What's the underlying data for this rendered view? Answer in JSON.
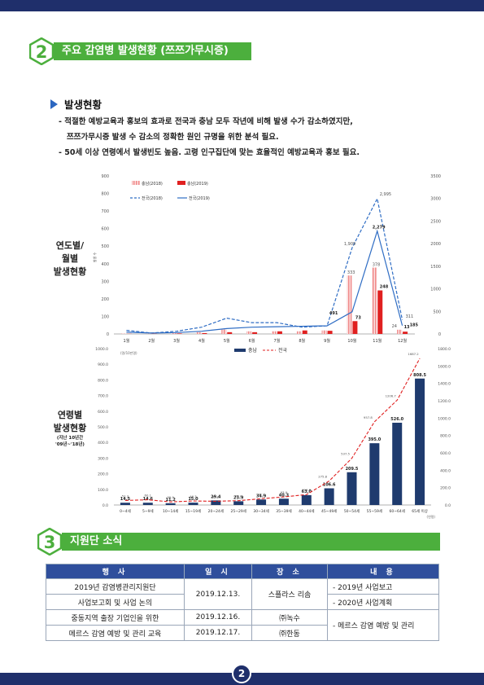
{
  "page_number": "2",
  "section2": {
    "number": "2",
    "title": "주요 감염병 발생현황 (쯔쯔가무시증)"
  },
  "subheading": "발생현황",
  "bullets": [
    "- 적절한 예방교육과 홍보의 효과로 전국과 충남 모두 작년에 비해 발생 수가 감소하였지만,",
    "쯔쯔가무시증 발생 수 감소의 정확한 원인 규명을 위한 분석 필요.",
    "- 50세 이상 연령에서 발생빈도 높음. 고령 인구집단에 맞는 효율적인 예방교육과 홍보 필요."
  ],
  "chart1_label": [
    "연도별/",
    "월별",
    "발생현황"
  ],
  "chart2_label": [
    "연령별",
    "발생현황"
  ],
  "chart2_sublabel": [
    "(지난 10년간",
    "'09년~'18년)"
  ],
  "colors": {
    "navy": "#1f2f6b",
    "green": "#4caf3d",
    "red": "#e02020",
    "pink": "#f4a9a9",
    "blue": "#2b66c0",
    "dash": "#2f6dc4"
  },
  "chart_data": [
    {
      "type": "bar",
      "title": "",
      "categories": [
        "1월",
        "2월",
        "3월",
        "4월",
        "5월",
        "6월",
        "7월",
        "8월",
        "9월",
        "10월",
        "11월",
        "12월"
      ],
      "left_axis_ticks": [
        "0",
        "100",
        "200",
        "300",
        "400",
        "500",
        "600",
        "700",
        "800",
        "900"
      ],
      "right_axis_ticks": [
        "0",
        "500",
        "1000",
        "1500",
        "2000",
        "2500",
        "3000",
        "3500"
      ],
      "ylim_left": [
        0,
        900
      ],
      "ylim_right": [
        0,
        3500
      ],
      "axis_unit": "발생 수",
      "series": [
        {
          "name": "충남(2018)",
          "kind": "bar",
          "axis": "left",
          "values": [
            2,
            1,
            5,
            10,
            25,
            15,
            15,
            15,
            20,
            333,
            378,
            24
          ]
        },
        {
          "name": "충남(2019)",
          "kind": "bar",
          "axis": "left",
          "values": [
            1,
            1,
            3,
            5,
            10,
            10,
            15,
            20,
            18,
            73,
            248,
            13
          ]
        },
        {
          "name": "전국(2018)",
          "kind": "line-dashed",
          "axis": "right",
          "values": [
            80,
            20,
            60,
            150,
            350,
            250,
            250,
            150,
            180,
            1909,
            2995,
            311
          ]
        },
        {
          "name": "전국(2019)",
          "kind": "line",
          "axis": "right",
          "values": [
            40,
            20,
            30,
            60,
            120,
            150,
            160,
            170,
            180,
            491,
            2279,
            185
          ]
        }
      ],
      "value_labels": [
        "1,909",
        "2,995",
        "333",
        "378",
        "2,279",
        "491",
        "73",
        "248",
        "311",
        "24",
        "13",
        "185"
      ]
    },
    {
      "type": "bar",
      "title": "",
      "categories": [
        "0~4세",
        "5~9세",
        "10~14세",
        "15~19세",
        "20~24세",
        "25~29세",
        "30~34세",
        "35~39세",
        "40~44세",
        "45~49세",
        "50~54세",
        "55~59세",
        "60~64세",
        "65세 이상"
      ],
      "left_axis_ticks": [
        "0.0",
        "100.0",
        "200.0",
        "300.0",
        "400.0",
        "500.0",
        "600.0",
        "700.0",
        "800.0",
        "900.0",
        "1000.0"
      ],
      "right_axis_ticks": [
        "0.0",
        "200.0",
        "400.0",
        "600.0",
        "800.0",
        "1000.0",
        "1200.0",
        "1400.0",
        "1600.0",
        "1800.0"
      ],
      "ylim_left": [
        0,
        1000
      ],
      "ylim_right": [
        0,
        1800
      ],
      "unit_note": "(명/10만명)",
      "unit_bottom": "(연령)",
      "series": [
        {
          "name": "충남",
          "kind": "bar",
          "axis": "left",
          "values": [
            14.5,
            14.6,
            11.2,
            15.0,
            29.4,
            23.9,
            34.9,
            40.3,
            63.0,
            106.6,
            209.5,
            395.0,
            526.0,
            808.5
          ]
        },
        {
          "name": "전국",
          "kind": "line-dashed",
          "axis": "right",
          "values": [
            52.3,
            60.1,
            35.9,
            46.3,
            42.8,
            50.0,
            72.2,
            93.0,
            119.8,
            275.8,
            537.5,
            957.8,
            1206.7,
            1687.2
          ]
        }
      ],
      "bar_labels": [
        "14.5",
        "14.6",
        "11.2",
        "15.0",
        "29.4",
        "23.9",
        "34.9",
        "40.3",
        "63.0",
        "106.6",
        "209.5",
        "395.0",
        "526.0",
        "808.5"
      ],
      "line_labels": [
        "52.3",
        "60.1",
        "35.9",
        "46.3",
        "42.8",
        "50.0",
        "72.2",
        "93.0",
        "119.8",
        "275.8",
        "537.5",
        "957.8",
        "1206.7",
        "1687.2"
      ]
    }
  ],
  "section3": {
    "number": "3",
    "title": "지원단 소식"
  },
  "events_table": {
    "headers": [
      "행 사",
      "일 시",
      "장 소",
      "내 용"
    ],
    "rows": [
      {
        "event": [
          "2019년 감염병관리지원단",
          "사업보고회 및 사업 논의"
        ],
        "date": "2019.12.13.",
        "place": "스플라스 리솜",
        "content": [
          "- 2019년 사업보고",
          "- 2020년 사업계획"
        ]
      },
      {
        "event": [
          "중동지역 출장 기업인을 위한",
          "메르스 감염 예방 및 관리 교육"
        ],
        "dates": [
          "2019.12.16.",
          "2019.12.17."
        ],
        "places": [
          "㈜녹수",
          "㈜한동"
        ],
        "content": [
          "- 메르스 감염 예방 및 관리"
        ]
      }
    ]
  }
}
